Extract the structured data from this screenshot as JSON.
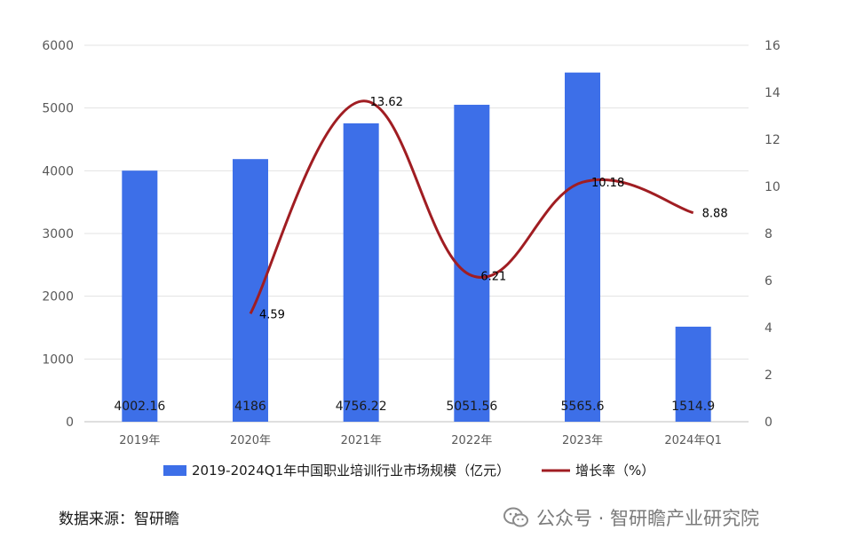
{
  "chart_data": {
    "type": "bar+line",
    "categories": [
      "2019年",
      "2020年",
      "2021年",
      "2022年",
      "2023年",
      "2024年Q1"
    ],
    "series": [
      {
        "name": "2019-2024Q1年中国职业培训行业市场规模（亿元）",
        "type": "bar",
        "axis": "left",
        "values": [
          4002.16,
          4186,
          4756.22,
          5051.56,
          5565.6,
          1514.9
        ],
        "labels": [
          "4002.16",
          "4186",
          "4756.22",
          "5051.56",
          "5565.6",
          "1514.9"
        ],
        "color": "#3d6fe8"
      },
      {
        "name": "增长率（%）",
        "type": "line",
        "axis": "right",
        "values": [
          null,
          4.59,
          13.62,
          6.21,
          10.18,
          8.88
        ],
        "labels": [
          "",
          "4.59",
          "13.62",
          "6.21",
          "10.18",
          "8.88"
        ],
        "color": "#a01d22"
      }
    ],
    "y_left": {
      "min": 0,
      "max": 6000,
      "ticks": [
        0,
        1000,
        2000,
        3000,
        4000,
        5000,
        6000
      ]
    },
    "y_right": {
      "min": 0,
      "max": 16,
      "ticks": [
        0,
        2,
        4,
        6,
        8,
        10,
        12,
        14,
        16
      ]
    },
    "grid": true,
    "legend": "bottom"
  },
  "footer": {
    "source": "数据来源：智研瞻",
    "watermark": "公众号 · 智研瞻产业研究院"
  },
  "icons": {
    "watermark_icon": "wechat-icon"
  }
}
